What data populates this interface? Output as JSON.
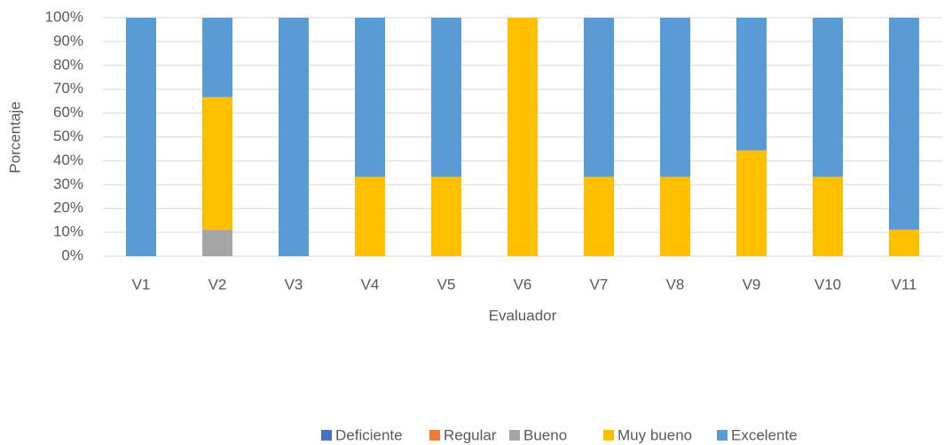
{
  "chart_data": {
    "type": "stacked_bar",
    "x_label": "Evaluador",
    "y_label": "Porcentaje",
    "categories": [
      "V1",
      "V2",
      "V3",
      "V4",
      "V5",
      "V6",
      "V7",
      "V8",
      "V9",
      "V10",
      "V11"
    ],
    "series": [
      {
        "name": "Deficiente",
        "color": "#4472c4",
        "values": [
          0,
          0,
          0,
          0,
          0,
          0,
          0,
          0,
          0,
          0,
          0
        ]
      },
      {
        "name": "Regular",
        "color": "#ed7d31",
        "values": [
          0,
          0,
          0,
          0,
          0,
          0,
          0,
          0,
          0,
          0,
          0
        ]
      },
      {
        "name": "Bueno",
        "color": "#a5a5a5",
        "values": [
          0,
          11.1,
          0,
          0,
          0,
          0,
          0,
          0,
          0,
          0,
          0
        ]
      },
      {
        "name": "Muy bueno",
        "color": "#ffc000",
        "values": [
          0,
          55.6,
          0,
          33.3,
          33.3,
          100,
          33.3,
          33.3,
          44.4,
          33.3,
          11.1
        ]
      },
      {
        "name": "Excelente",
        "color": "#5b9bd5",
        "values": [
          100,
          33.3,
          100,
          66.7,
          66.7,
          0,
          66.7,
          66.7,
          55.6,
          66.7,
          88.9
        ]
      }
    ],
    "ylim": [
      0,
      100
    ],
    "yticks": [
      {
        "value": 0,
        "label": "0%"
      },
      {
        "value": 10,
        "label": "10%"
      },
      {
        "value": 20,
        "label": "20%"
      },
      {
        "value": 30,
        "label": "30%"
      },
      {
        "value": 40,
        "label": "40%"
      },
      {
        "value": 50,
        "label": "50%"
      },
      {
        "value": 60,
        "label": "60%"
      },
      {
        "value": 70,
        "label": "70%"
      },
      {
        "value": 80,
        "label": "80%"
      },
      {
        "value": 90,
        "label": "90%"
      },
      {
        "value": 100,
        "label": "100%"
      }
    ],
    "grid": true,
    "legend": "bottom"
  }
}
